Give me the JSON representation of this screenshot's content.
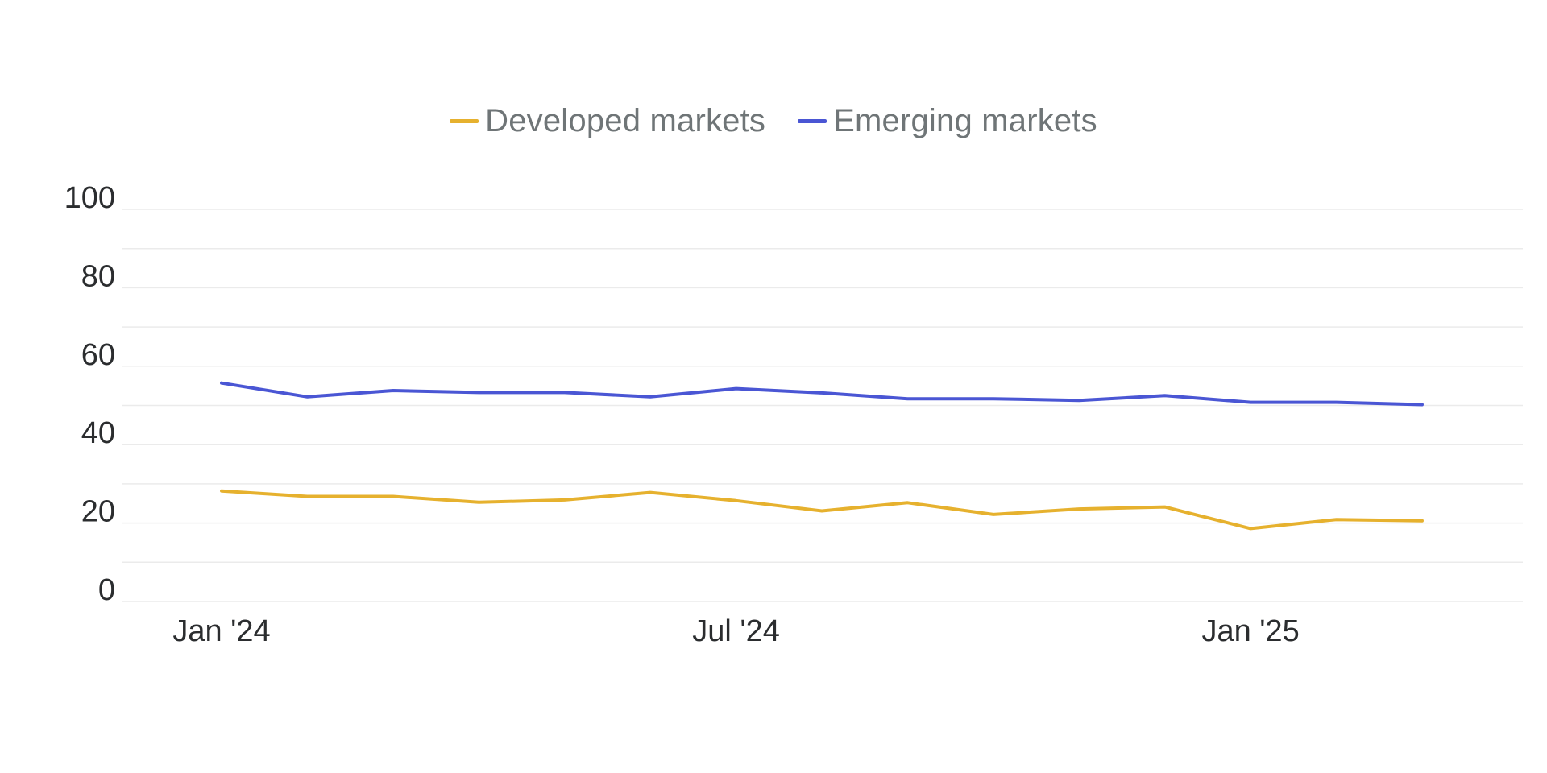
{
  "chart_data": {
    "type": "line",
    "title": "",
    "xlabel": "",
    "ylabel": "",
    "x": [
      "2024-01",
      "2024-02",
      "2024-03",
      "2024-04",
      "2024-05",
      "2024-06",
      "2024-07",
      "2024-08",
      "2024-09",
      "2024-10",
      "2024-11",
      "2024-12",
      "2025-01",
      "2025-02",
      "2025-03"
    ],
    "x_tick_labels": [
      "Jan '24",
      "Jul '24",
      "Jan '25"
    ],
    "y_ticks": [
      "0",
      "20",
      "40",
      "60",
      "80",
      "100"
    ],
    "ylim": [
      0,
      100
    ],
    "grid": true,
    "legend_placement": "top-center",
    "series": [
      {
        "name": "Developed markets",
        "color": "#e6b12e",
        "values": [
          28.2,
          26.8,
          26.8,
          25.3,
          25.9,
          27.8,
          25.7,
          23.1,
          25.2,
          22.2,
          23.6,
          24.1,
          18.6,
          20.9,
          20.6
        ]
      },
      {
        "name": "Emerging markets",
        "color": "#4a56d4",
        "values": [
          55.7,
          52.2,
          53.8,
          53.3,
          53.3,
          52.2,
          54.3,
          53.2,
          51.7,
          51.7,
          51.3,
          52.5,
          50.8,
          50.8,
          50.2
        ]
      }
    ],
    "gridline_color": "#ebebeb"
  }
}
